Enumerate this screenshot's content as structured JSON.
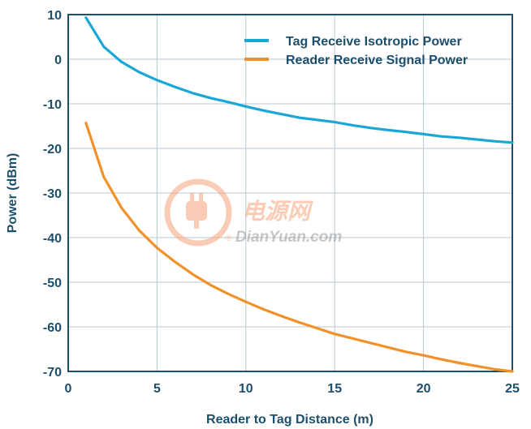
{
  "chart_data": {
    "type": "line",
    "xlabel": "Reader to Tag Distance (m)",
    "ylabel": "Power (dBm)",
    "xlim": [
      0,
      25
    ],
    "ylim": [
      -70,
      10
    ],
    "xticks": [
      0,
      5,
      10,
      15,
      20,
      25
    ],
    "yticks": [
      10,
      0,
      -10,
      -20,
      -30,
      -40,
      -50,
      -60,
      -70
    ],
    "grid": true,
    "legend_position": "top-right",
    "series": [
      {
        "name": "Tag Receive Isotropic Power",
        "color": "#1aa7d6",
        "x": [
          1,
          2,
          3,
          4,
          5,
          6,
          7,
          8,
          9,
          10,
          11,
          12,
          13,
          14,
          15,
          16,
          17,
          18,
          19,
          20,
          21,
          22,
          23,
          24,
          25
        ],
        "y": [
          9.3,
          2.8,
          -0.6,
          -2.9,
          -4.7,
          -6.2,
          -7.6,
          -8.7,
          -9.6,
          -10.6,
          -11.5,
          -12.3,
          -13.1,
          -13.6,
          -14.1,
          -14.8,
          -15.4,
          -15.9,
          -16.3,
          -16.8,
          -17.3,
          -17.6,
          -18.0,
          -18.4,
          -18.7
        ]
      },
      {
        "name": "Reader Receive Signal Power",
        "color": "#f0912a",
        "x": [
          1,
          2,
          3,
          4,
          5,
          6,
          7,
          8,
          9,
          10,
          11,
          12,
          13,
          14,
          15,
          16,
          17,
          18,
          19,
          20,
          21,
          22,
          23,
          24,
          25
        ],
        "y": [
          -14.3,
          -26.4,
          -33.3,
          -38.4,
          -42.3,
          -45.4,
          -48.2,
          -50.6,
          -52.6,
          -54.4,
          -56.1,
          -57.6,
          -59.0,
          -60.3,
          -61.6,
          -62.6,
          -63.6,
          -64.6,
          -65.6,
          -66.4,
          -67.3,
          -68.1,
          -68.8,
          -69.5,
          -70.0
        ]
      }
    ]
  },
  "watermark": {
    "text_cn": "电源网",
    "text_en": "DianYuan.com",
    "icon": "power-plug-icon",
    "color": "#f6a47b"
  }
}
